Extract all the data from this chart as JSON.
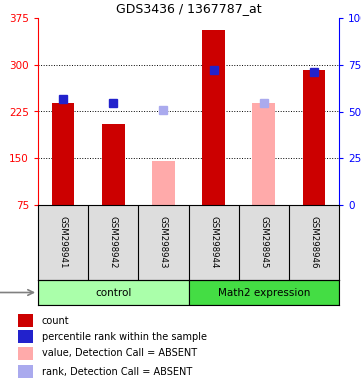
{
  "title": "GDS3436 / 1367787_at",
  "samples": [
    "GSM298941",
    "GSM298942",
    "GSM298943",
    "GSM298944",
    "GSM298945",
    "GSM298946"
  ],
  "bar_values": [
    238,
    205,
    null,
    355,
    null,
    291
  ],
  "bar_absent_values": [
    null,
    null,
    145,
    null,
    238,
    null
  ],
  "rank_values": [
    245,
    238,
    null,
    291,
    null,
    289
  ],
  "rank_absent_values": [
    null,
    null,
    227,
    null,
    238,
    null
  ],
  "bar_color": "#cc0000",
  "bar_absent_color": "#ffaaaa",
  "rank_color": "#2222cc",
  "rank_absent_color": "#aaaaee",
  "ylim_left": [
    75,
    375
  ],
  "ylim_right": [
    0,
    100
  ],
  "left_ticks": [
    75,
    150,
    225,
    300,
    375
  ],
  "right_ticks": [
    0,
    25,
    50,
    75,
    100
  ],
  "left_tick_labels": [
    "75",
    "150",
    "225",
    "300",
    "375"
  ],
  "right_tick_labels": [
    "0",
    "25",
    "50",
    "75",
    "100%"
  ],
  "grid_values": [
    150,
    225,
    300
  ],
  "rank_marker_size": 6,
  "legend_items": [
    {
      "label": "count",
      "color": "#cc0000"
    },
    {
      "label": "percentile rank within the sample",
      "color": "#2222cc"
    },
    {
      "label": "value, Detection Call = ABSENT",
      "color": "#ffaaaa"
    },
    {
      "label": "rank, Detection Call = ABSENT",
      "color": "#aaaaee"
    }
  ],
  "bg_color": "#dddddd",
  "plot_bg": "#ffffff",
  "groups": [
    {
      "name": "control",
      "start": 0,
      "end": 2,
      "color": "#aaffaa"
    },
    {
      "name": "Math2 expression",
      "start": 3,
      "end": 5,
      "color": "#44dd44"
    }
  ]
}
